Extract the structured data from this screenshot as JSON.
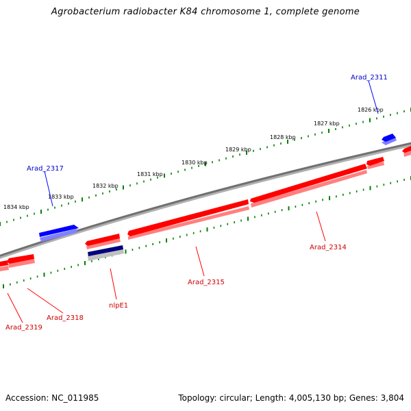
{
  "header": {
    "title": "Agrobacterium radiobacter K84 chromosome 1, complete genome"
  },
  "footer": {
    "accession": "Accession: NC_011985",
    "stats": "Topology: circular; Length: 4,005,130 bp; Genes: 3,804"
  },
  "colors": {
    "forward_gene": "#ff0000",
    "forward_gene_shadow": "#ff8080",
    "reverse_gene": "#0000ff",
    "reverse_gene_shadow": "#8080ff",
    "rna_gene": "#00007f",
    "rna_gene_shadow": "#c0c0c0",
    "backbone": "#808080",
    "tick": "#007f00",
    "forward_label": "#cc0000",
    "reverse_label": "#0000cc"
  },
  "scale_labels": [
    "1826 kbp",
    "1827 kbp",
    "1828 kbp",
    "1829 kbp",
    "1830 kbp",
    "1831 kbp",
    "1832 kbp",
    "1833 kbp",
    "1834 kbp"
  ],
  "genes": [
    {
      "name": "Arad_2311",
      "strand": "reverse"
    },
    {
      "name": "Arad_2314",
      "strand": "forward"
    },
    {
      "name": "Arad_2315",
      "strand": "forward"
    },
    {
      "name": "nlpE1",
      "strand": "rna"
    },
    {
      "name": "Arad_2317",
      "strand": "reverse"
    },
    {
      "name": "Arad_2318",
      "strand": "forward"
    },
    {
      "name": "Arad_2319",
      "strand": "forward"
    }
  ]
}
